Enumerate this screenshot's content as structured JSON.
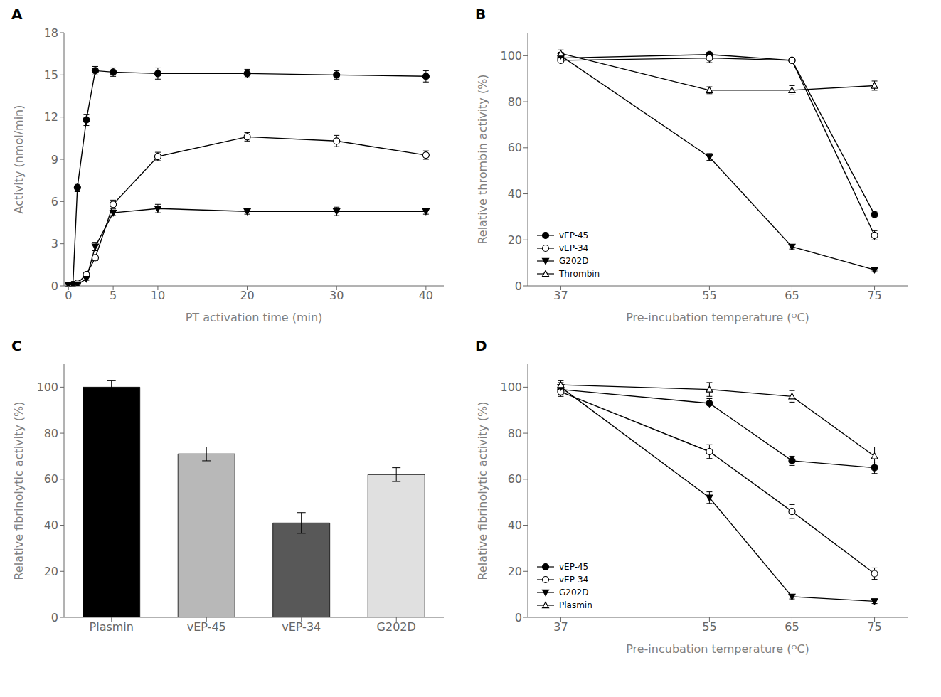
{
  "chart_data": [
    {
      "title": "A",
      "type": "line",
      "xlabel": "PT activation time (min)",
      "ylabel": "Activity (nmol/min)",
      "x": [
        0,
        0.5,
        1,
        2,
        3,
        5,
        10,
        20,
        30,
        40
      ],
      "xlim": [
        -0.5,
        42
      ],
      "xticks": [
        0,
        5,
        10,
        20,
        30,
        40
      ],
      "ylim": [
        0,
        18
      ],
      "yticks": [
        0,
        3,
        6,
        9,
        12,
        15,
        18
      ],
      "grid": false,
      "series": [
        {
          "color": "#000000",
          "marker": "filled_circle",
          "values": [
            0.05,
            0.1,
            7.0,
            11.8,
            15.3,
            15.2,
            15.1,
            15.1,
            15.0,
            14.9
          ],
          "yerr": [
            0.05,
            0.1,
            0.3,
            0.4,
            0.3,
            0.3,
            0.4,
            0.3,
            0.3,
            0.4
          ]
        },
        {
          "color": "#000000",
          "marker": "open_circle",
          "values": [
            0.05,
            0.1,
            0.2,
            0.8,
            2.0,
            5.8,
            9.2,
            10.6,
            10.3,
            9.3
          ],
          "yerr": [
            0.05,
            0.05,
            0.05,
            0.1,
            0.2,
            0.3,
            0.3,
            0.3,
            0.4,
            0.3
          ]
        },
        {
          "color": "#000000",
          "marker": "filled_triangle_down",
          "values": [
            0.05,
            0.05,
            0.1,
            0.5,
            2.8,
            5.2,
            5.5,
            5.3,
            5.3,
            5.3
          ],
          "yerr": [
            0.05,
            0.05,
            0.05,
            0.1,
            0.3,
            0.2,
            0.3,
            0.2,
            0.3,
            0.2
          ]
        }
      ]
    },
    {
      "title": "B",
      "type": "line",
      "xlabel": "Pre-incubation temperature (ᴼC)",
      "ylabel": "Relative thrombin activity (%)",
      "x": [
        37,
        55,
        65,
        75
      ],
      "xlim": [
        33,
        79
      ],
      "xticks": [
        37,
        55,
        65,
        75
      ],
      "ylim": [
        0,
        110
      ],
      "yticks": [
        0,
        20,
        40,
        60,
        80,
        100
      ],
      "grid": false,
      "legend": "lower left",
      "series": [
        {
          "name": "vEP-45",
          "color": "#000000",
          "marker": "filled_circle",
          "values": [
            99,
            100.5,
            98,
            31
          ],
          "yerr": [
            1.0,
            1.0,
            1.0,
            1.5
          ]
        },
        {
          "name": "vEP-34",
          "color": "#000000",
          "marker": "open_circle",
          "values": [
            98,
            99,
            98,
            22
          ],
          "yerr": [
            1.0,
            2.0,
            1.0,
            2.0
          ]
        },
        {
          "name": "G202D",
          "color": "#000000",
          "marker": "filled_triangle_down",
          "values": [
            100,
            56,
            17,
            7
          ],
          "yerr": [
            1.5,
            1.5,
            1.0,
            0.5
          ]
        },
        {
          "name": "Thrombin",
          "color": "#000000",
          "marker": "open_triangle_up",
          "values": [
            101,
            85,
            85,
            87
          ],
          "yerr": [
            1.5,
            1.5,
            2.0,
            2.0
          ]
        }
      ]
    },
    {
      "title": "C",
      "type": "bar",
      "ylabel": "Relative fibrinolytic activity (%)",
      "categories": [
        "Plasmin",
        "vEP-45",
        "vEP-34",
        "G202D"
      ],
      "values": [
        100,
        71,
        41,
        62
      ],
      "yerr": [
        3.0,
        3.0,
        4.5,
        3.0
      ],
      "colors": [
        "#000000",
        "#b8b8b8",
        "#585858",
        "#e0e0e0"
      ],
      "ylim": [
        0,
        110
      ],
      "yticks": [
        0,
        20,
        40,
        60,
        80,
        100
      ],
      "grid": false
    },
    {
      "title": "D",
      "type": "line",
      "xlabel": "Pre-incubation temperature (ᴼC)",
      "ylabel": "Relative fibrinolytic activity (%)",
      "x": [
        37,
        55,
        65,
        75
      ],
      "xlim": [
        33,
        79
      ],
      "xticks": [
        37,
        55,
        65,
        75
      ],
      "ylim": [
        0,
        110
      ],
      "yticks": [
        0,
        20,
        40,
        60,
        80,
        100
      ],
      "grid": false,
      "legend": "lower left",
      "series": [
        {
          "name": "vEP-45",
          "color": "#000000",
          "marker": "filled_circle",
          "values": [
            99,
            93,
            68,
            65
          ],
          "yerr": [
            2.0,
            2.0,
            2.0,
            2.5
          ]
        },
        {
          "name": "vEP-34",
          "color": "#000000",
          "marker": "open_circle",
          "values": [
            98,
            72,
            46,
            19
          ],
          "yerr": [
            2.0,
            3.0,
            3.0,
            2.5
          ]
        },
        {
          "name": "G202D",
          "color": "#000000",
          "marker": "filled_triangle_down",
          "values": [
            100,
            52,
            9,
            7
          ],
          "yerr": [
            2.0,
            2.5,
            1.0,
            1.0
          ]
        },
        {
          "name": "Plasmin",
          "color": "#000000",
          "marker": "open_triangle_up",
          "values": [
            101,
            99,
            96,
            70
          ],
          "yerr": [
            2.0,
            3.0,
            2.5,
            4.0
          ]
        }
      ]
    }
  ]
}
